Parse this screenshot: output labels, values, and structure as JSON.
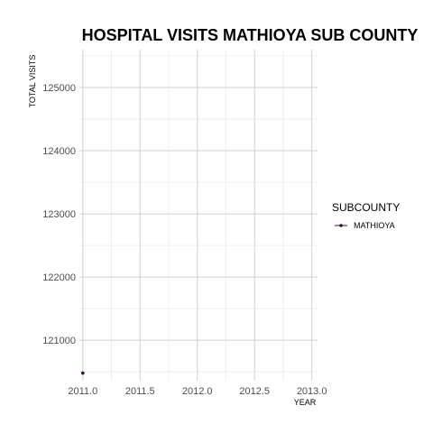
{
  "chart_data": {
    "type": "line",
    "title": "HOSPITAL VISITS MATHIOYA SUB COUNTY",
    "xlabel": "YEAR",
    "ylabel": "TOTAL VISITS",
    "xlim": [
      2010.97,
      2013.05
    ],
    "ylim": [
      120360,
      125600
    ],
    "xticks": [
      2011.0,
      2011.5,
      2012.0,
      2012.5,
      2013.0
    ],
    "xtick_labels": [
      "2011.0",
      "2011.5",
      "2012.0",
      "2012.5",
      "2013.0"
    ],
    "yticks": [
      121000,
      122000,
      123000,
      124000,
      125000
    ],
    "ytick_labels": [
      "121000",
      "122000",
      "123000",
      "124000",
      "125000"
    ],
    "grid": true,
    "legend": {
      "title": "SUBCOUNTY",
      "position": "right"
    },
    "series": [
      {
        "name": "MATHIOYA",
        "color": "#3a0a45",
        "x": [
          2011.0
        ],
        "y": [
          120480
        ]
      }
    ]
  }
}
